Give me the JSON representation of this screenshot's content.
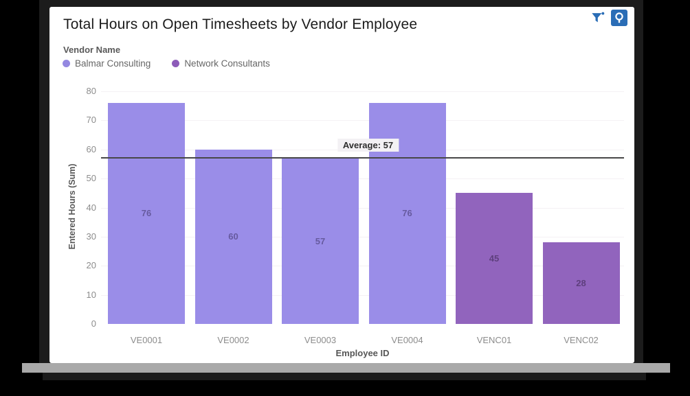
{
  "header": {
    "title": "Total Hours on Open Timesheets by Vendor Employee",
    "toolbar": {
      "filter_icon": "filter-active-icon",
      "explore_icon": "explore-data-icon",
      "icon_color": "#2a6db6"
    }
  },
  "legend": {
    "title": "Vendor Name",
    "items": [
      {
        "label": "Balmar Consulting",
        "color": "#9488e1"
      },
      {
        "label": "Network Consultants",
        "color": "#8d5bb9"
      }
    ]
  },
  "chart_data": {
    "type": "bar",
    "title": "Total Hours on Open Timesheets by Vendor Employee",
    "xlabel": "Employee ID",
    "ylabel": "Entered Hours (Sum)",
    "ylim": [
      0,
      80
    ],
    "yticks": [
      0,
      10,
      20,
      30,
      40,
      50,
      60,
      70,
      80
    ],
    "grid": "horizontal-light",
    "legend_position": "top-left",
    "categories": [
      "VE0001",
      "VE0002",
      "VE0003",
      "VE0004",
      "VENC01",
      "VENC02"
    ],
    "series": [
      {
        "name": "Balmar Consulting",
        "color": "#9a8de8",
        "label_color": "#665a9f",
        "values": [
          76,
          60,
          57,
          76,
          null,
          null
        ]
      },
      {
        "name": "Network Consultants",
        "color": "#9164bd",
        "label_color": "#5e3f7d",
        "values": [
          null,
          null,
          null,
          null,
          45,
          28
        ]
      }
    ],
    "bars": [
      {
        "category": "VE0001",
        "value": 76,
        "series": 0
      },
      {
        "category": "VE0002",
        "value": 60,
        "series": 0
      },
      {
        "category": "VE0003",
        "value": 57,
        "series": 0
      },
      {
        "category": "VE0004",
        "value": 76,
        "series": 0
      },
      {
        "category": "VENC01",
        "value": 45,
        "series": 1
      },
      {
        "category": "VENC02",
        "value": 28,
        "series": 1
      }
    ],
    "average_line": {
      "value": 57,
      "label": "Average: 57"
    }
  }
}
